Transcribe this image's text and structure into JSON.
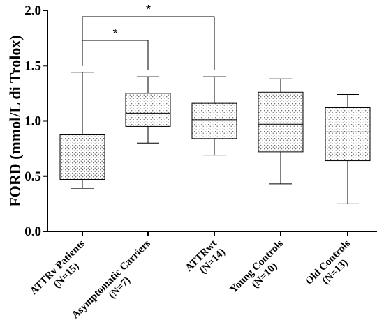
{
  "chart_data": {
    "type": "box",
    "ylabel": "FORD (mmol/L di Trolox)",
    "xlabel": "",
    "ylim": [
      0,
      2.0
    ],
    "y_ticks": [
      "0.0",
      "0.5",
      "1.0",
      "1.5",
      "2.0"
    ],
    "grid": false,
    "legend": "none",
    "fill_pattern": "dotted",
    "categories": [
      [
        "ATTRv Patients",
        "(N=15)"
      ],
      [
        "Asymptomatic Carriers",
        "(N=7)"
      ],
      [
        "ATTRwt",
        "(N=14)"
      ],
      [
        "Young Controls",
        "(N=10)"
      ],
      [
        "Old Controls",
        "(N=13)"
      ]
    ],
    "boxes": [
      {
        "min": 0.39,
        "q1": 0.47,
        "median": 0.71,
        "q3": 0.88,
        "max": 1.44
      },
      {
        "min": 0.8,
        "q1": 0.95,
        "median": 1.07,
        "q3": 1.25,
        "max": 1.4
      },
      {
        "min": 0.69,
        "q1": 0.84,
        "median": 1.01,
        "q3": 1.16,
        "max": 1.4
      },
      {
        "min": 0.43,
        "q1": 0.72,
        "median": 0.97,
        "q3": 1.26,
        "max": 1.38
      },
      {
        "min": 0.25,
        "q1": 0.64,
        "median": 0.9,
        "q3": 1.12,
        "max": 1.24
      }
    ],
    "significance": [
      {
        "from": 0,
        "to": 1,
        "label": "*"
      },
      {
        "from": 0,
        "to": 2,
        "label": "*"
      }
    ]
  }
}
